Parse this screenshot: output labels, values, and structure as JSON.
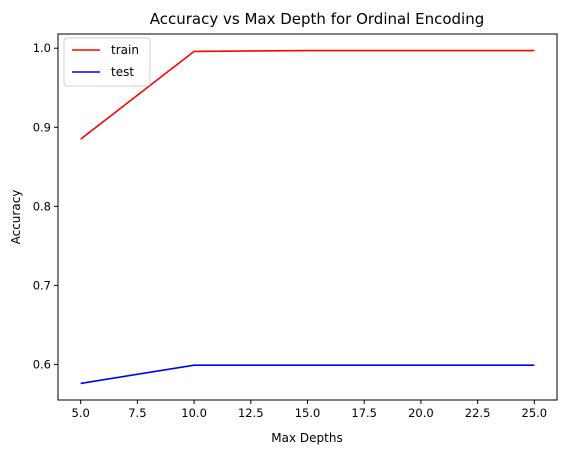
{
  "chart_data": {
    "type": "line",
    "title": "Accuracy vs Max Depth for Ordinal Encoding",
    "xlabel": "Max Depths",
    "ylabel": "Accuracy",
    "x": [
      5,
      10,
      15,
      20,
      25
    ],
    "series": [
      {
        "name": "train",
        "color": "#ff0000",
        "values": [
          0.885,
          0.996,
          0.997,
          0.997,
          0.997
        ]
      },
      {
        "name": "test",
        "color": "#0000ff",
        "values": [
          0.576,
          0.599,
          0.599,
          0.599,
          0.599
        ]
      }
    ],
    "xlim": [
      4,
      26
    ],
    "ylim": [
      0.555,
      1.018
    ],
    "xticks": [
      5.0,
      7.5,
      10.0,
      12.5,
      15.0,
      17.5,
      20.0,
      22.5,
      25.0
    ],
    "xtick_labels": [
      "5.0",
      "7.5",
      "10.0",
      "12.5",
      "15.0",
      "17.5",
      "20.0",
      "22.5",
      "25.0"
    ],
    "yticks": [
      0.6,
      0.7,
      0.8,
      0.9,
      1.0
    ],
    "ytick_labels": [
      "0.6",
      "0.7",
      "0.8",
      "0.9",
      "1.0"
    ],
    "grid": false,
    "legend_position": "upper-left"
  }
}
